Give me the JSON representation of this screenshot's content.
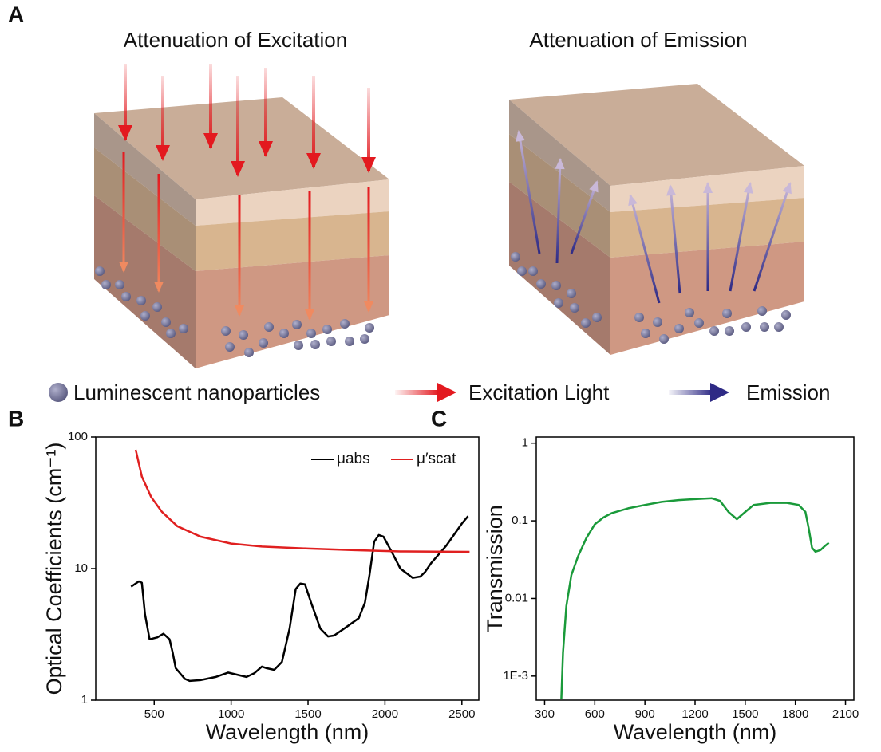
{
  "panel_a": {
    "label": "A",
    "titles": [
      "Attenuation of Excitation",
      "Attenuation of Emission"
    ],
    "legend": [
      "Luminescent nanoparticles",
      "Excitation Light",
      "Emission"
    ]
  },
  "chart_data": [
    {
      "type": "line",
      "panel_label": "B",
      "x_label": "Wavelength (nm)",
      "y_label": "Optical Coefficients (cm⁻¹)",
      "xlim": [
        120,
        2610
      ],
      "xticks": [
        500,
        1000,
        1500,
        2000,
        2500
      ],
      "ylim": [
        1,
        100
      ],
      "yticks": [
        1,
        10,
        100
      ],
      "ylog": true,
      "legend": "upper right",
      "series": [
        {
          "name": "μabs",
          "color": "#000000",
          "x": [
            350,
            400,
            420,
            440,
            470,
            520,
            560,
            600,
            620,
            640,
            700,
            730,
            800,
            900,
            980,
            1050,
            1100,
            1150,
            1200,
            1230,
            1280,
            1330,
            1380,
            1420,
            1450,
            1480,
            1520,
            1580,
            1630,
            1670,
            1750,
            1830,
            1870,
            1900,
            1930,
            1960,
            1990,
            2050,
            2100,
            2180,
            2230,
            2260,
            2300,
            2400,
            2500,
            2540
          ],
          "values": [
            7.3,
            8,
            7.8,
            4.5,
            2.9,
            3.0,
            3.2,
            2.9,
            2.3,
            1.75,
            1.45,
            1.4,
            1.42,
            1.5,
            1.62,
            1.55,
            1.5,
            1.6,
            1.8,
            1.75,
            1.7,
            1.95,
            3.5,
            7.0,
            7.7,
            7.6,
            5.5,
            3.5,
            3.05,
            3.1,
            3.6,
            4.2,
            5.5,
            9,
            16,
            18,
            17.5,
            13,
            10,
            8.5,
            8.7,
            9.4,
            11,
            15,
            22,
            25
          ]
        },
        {
          "name": "μ′scat",
          "color": "#e02020",
          "x": [
            380,
            420,
            480,
            550,
            650,
            800,
            1000,
            1200,
            1500,
            1800,
            2100,
            2550
          ],
          "values": [
            80,
            50,
            35,
            27,
            21,
            17.5,
            15.5,
            14.7,
            14.2,
            13.8,
            13.5,
            13.4
          ]
        }
      ]
    },
    {
      "type": "line",
      "panel_label": "C",
      "x_label": "Wavelength (nm)",
      "y_label": "Transmission",
      "xlim": [
        250,
        2150
      ],
      "xticks": [
        300,
        600,
        900,
        1200,
        1500,
        1800,
        2100
      ],
      "ylim": [
        0.00049,
        1.2
      ],
      "yticks": [
        {
          "value": 0.001,
          "label": "1E-3"
        },
        0.01,
        0.1,
        1
      ],
      "ylog": true,
      "series": [
        {
          "color": "#1a9a3a",
          "x": [
            400,
            410,
            430,
            460,
            500,
            550,
            600,
            650,
            700,
            800,
            900,
            1000,
            1100,
            1200,
            1300,
            1350,
            1400,
            1450,
            1500,
            1550,
            1650,
            1750,
            1820,
            1860,
            1880,
            1900,
            1920,
            1950,
            1980,
            2000
          ],
          "values": [
            0.0005,
            0.002,
            0.008,
            0.02,
            0.035,
            0.06,
            0.09,
            0.11,
            0.125,
            0.145,
            0.16,
            0.175,
            0.185,
            0.19,
            0.195,
            0.18,
            0.13,
            0.105,
            0.13,
            0.16,
            0.17,
            0.17,
            0.16,
            0.13,
            0.08,
            0.045,
            0.04,
            0.042,
            0.048,
            0.052
          ]
        }
      ]
    }
  ]
}
